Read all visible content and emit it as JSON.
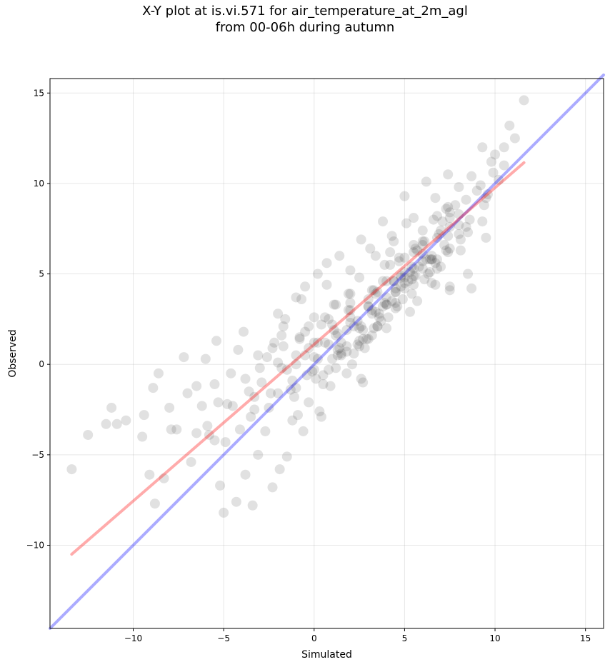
{
  "chart_data": {
    "type": "scatter",
    "title_lines": [
      "X-Y plot at is.vi.571 for air_temperature_at_2m_agl",
      "from 00-06h during autumn"
    ],
    "xlabel": "Simulated",
    "ylabel": "Observed",
    "xlim": [
      -14.6,
      16
    ],
    "ylim": [
      -14.6,
      15.8
    ],
    "x_ticks": [
      -10,
      -5,
      0,
      5,
      10,
      15
    ],
    "y_ticks": [
      -10,
      -5,
      0,
      5,
      10,
      15
    ],
    "x_tick_labels": [
      "−10",
      "−5",
      "0",
      "5",
      "10",
      "15"
    ],
    "y_tick_labels": [
      "−10",
      "−5",
      "0",
      "5",
      "10",
      "15"
    ],
    "grid": true,
    "point_color": "#333333",
    "lines": [
      {
        "kind": "one-to-one",
        "x": [
          -14.6,
          16
        ],
        "y": [
          -14.6,
          16
        ],
        "color": "#0000ff"
      },
      {
        "kind": "fit",
        "x": [
          -13.4,
          11.6
        ],
        "y": [
          -10.5,
          11.15
        ],
        "color": "#ff0000"
      }
    ],
    "points": {
      "x": [
        -13.4,
        -12.5,
        -11.5,
        -11.2,
        -10.9,
        -10.4,
        -9.5,
        -9.4,
        -9.1,
        -8.9,
        -8.8,
        -8.6,
        -8.3,
        -8.0,
        -7.9,
        -7.6,
        -7.2,
        -7.0,
        -6.8,
        -6.5,
        -6.2,
        -6.0,
        -5.8,
        -5.5,
        -5.4,
        -5.2,
        -5.0,
        -4.9,
        -4.3,
        -4.1,
        -3.8,
        -3.4,
        -3.3,
        -3.1,
        -2.7,
        -2.3,
        -2.0,
        -1.9,
        -1.5,
        -1.2,
        -0.9,
        -0.6,
        -0.3,
        0.0,
        0.3,
        0.6,
        0.9,
        1.2,
        1.5,
        1.8,
        2.1,
        2.4,
        2.7,
        3.0,
        3.3,
        3.6,
        3.9,
        4.2,
        4.5,
        4.8,
        5.1,
        5.4,
        5.7,
        6.0,
        6.3,
        6.6,
        6.9,
        7.2,
        7.5,
        7.8,
        8.1,
        8.4,
        8.7,
        9.0,
        9.3,
        9.6,
        9.9,
        10.2,
        10.5,
        10.8,
        11.1,
        11.6,
        -5.5,
        -4.8,
        -4.2,
        -3.6,
        -3.0,
        -2.5,
        -1.8,
        -1.2,
        -0.5,
        0.2,
        0.8,
        1.4,
        2.0,
        2.6,
        3.2,
        3.8,
        4.4,
        5.0,
        5.6,
        6.2,
        6.8,
        7.4,
        8.0,
        8.6,
        9.2,
        9.8,
        -6.5,
        -5.9,
        -5.3,
        -4.6,
        -3.9,
        -3.3,
        -2.6,
        -2.0,
        -1.3,
        -0.7,
        0.0,
        0.7,
        1.3,
        2.0,
        2.7,
        3.4,
        4.0,
        4.7,
        5.3,
        6.0,
        6.7,
        7.3,
        8.0,
        8.7,
        9.3,
        10.0,
        -2.2,
        -1.6,
        -1.0,
        -0.4,
        0.2,
        0.8,
        1.4,
        2.0,
        2.6,
        3.2,
        3.8,
        4.4,
        5.0,
        5.6,
        6.2,
        6.8,
        7.4,
        8.0,
        -3.5,
        -2.9,
        -2.3,
        -1.7,
        -1.1,
        -0.5,
        0.1,
        0.7,
        1.3,
        1.9,
        2.5,
        3.1,
        3.7,
        4.3,
        4.9,
        5.5,
        6.1,
        6.7,
        7.3,
        -1.0,
        -0.3,
        0.4,
        1.1,
        1.8,
        2.5,
        3.2,
        3.9,
        4.6,
        5.3,
        6.0,
        6.7,
        7.4,
        8.1,
        0.5,
        1.2,
        1.9,
        2.6,
        3.3,
        4.0,
        4.7,
        5.4,
        6.1,
        6.8,
        7.5,
        2.2,
        2.9,
        3.6,
        4.3,
        5.0,
        5.7,
        6.4,
        7.1,
        -0.8,
        -0.1,
        0.6,
        1.3,
        2.0,
        2.7,
        3.4,
        4.1,
        4.8,
        5.5,
        -4.5,
        -3.8,
        -3.1,
        -2.4,
        -1.7,
        -1.0,
        -0.3,
        0.4,
        1.1,
        1.8,
        -1.5,
        -0.5,
        0.5,
        1.5,
        2.5,
        3.5,
        4.5,
        5.5,
        6.5,
        7.5,
        8.5,
        9.5,
        0.0,
        1.0,
        2.0,
        3.0,
        4.0,
        5.0,
        6.0,
        7.0,
        8.0,
        1.5,
        2.5,
        3.5,
        4.5,
        5.5,
        6.5,
        7.5,
        3.0,
        4.0,
        5.0,
        6.0,
        7.0,
        -2.0,
        -1.0,
        0.0,
        1.0,
        2.0,
        3.0,
        4.0,
        5.0,
        6.0,
        4.5,
        5.5,
        6.5,
        7.5,
        8.5,
        9.5,
        10.5,
        3.5,
        4.5,
        5.5,
        6.5,
        7.5,
        -1.8,
        -0.8,
        0.2,
        1.2,
        2.2,
        3.2,
        4.2,
        5.2,
        0.8,
        1.8,
        2.8,
        3.8,
        4.8,
        5.8,
        6.8,
        2.4,
        3.4,
        4.4,
        5.4,
        6.4,
        7.4,
        8.4,
        9.4
      ],
      "y": [
        -5.8,
        -3.9,
        -3.3,
        -2.4,
        -3.3,
        -3.1,
        -4.0,
        -2.8,
        -6.1,
        -1.3,
        -7.7,
        -0.5,
        -6.3,
        -2.4,
        -3.6,
        -3.6,
        0.4,
        -1.6,
        -5.4,
        -3.8,
        -2.3,
        0.3,
        -3.9,
        -1.1,
        1.3,
        -6.7,
        -8.2,
        -4.3,
        -7.6,
        -3.6,
        -6.1,
        -7.8,
        -2.5,
        -5.0,
        -3.7,
        -6.8,
        0.1,
        -5.8,
        -5.1,
        -3.1,
        -2.8,
        -3.7,
        -2.1,
        -0.3,
        -2.6,
        1.2,
        -1.2,
        -0.2,
        0.5,
        1.9,
        0.0,
        2.4,
        -1.0,
        3.2,
        2.0,
        2.6,
        3.4,
        6.2,
        4.0,
        4.8,
        7.8,
        5.4,
        3.5,
        6.1,
        5.0,
        8.0,
        7.2,
        6.6,
        4.1,
        8.8,
        6.3,
        9.1,
        4.2,
        9.6,
        12.0,
        9.4,
        10.6,
        10.2,
        12.0,
        13.2,
        12.5,
        14.6,
        -4.2,
        -2.2,
        0.8,
        -1.5,
        -0.2,
        -2.4,
        1.6,
        -0.9,
        1.8,
        0.3,
        2.5,
        0.9,
        3.9,
        2.1,
        3.0,
        4.6,
        6.8,
        4.2,
        6.4,
        5.8,
        8.2,
        7.1,
        9.8,
        8.0,
        9.9,
        11.2,
        -1.2,
        -3.4,
        -2.1,
        -0.5,
        1.8,
        -1.8,
        0.4,
        2.8,
        -1.4,
        3.6,
        1.2,
        4.4,
        0.5,
        5.2,
        1.4,
        6.0,
        3.3,
        5.9,
        2.9,
        7.4,
        5.6,
        8.6,
        7.7,
        10.4,
        7.9,
        11.6,
        1.2,
        2.5,
        3.7,
        -0.6,
        5.0,
        1.1,
        6.0,
        2.6,
        6.9,
        2.8,
        7.9,
        4.6,
        9.3,
        4.9,
        10.1,
        5.8,
        10.5,
        7.2,
        -2.9,
        -1.0,
        0.9,
        2.1,
        -1.8,
        4.3,
        -0.8,
        5.6,
        1.7,
        3.9,
        1.3,
        6.4,
        2.4,
        7.1,
        3.6,
        8.1,
        4.7,
        9.2,
        6.3,
        0.0,
        2.1,
        -2.9,
        3.3,
        -0.5,
        4.8,
        1.6,
        5.5,
        3.2,
        5.1,
        6.8,
        4.4,
        8.7,
        6.9,
        -1.1,
        1.6,
        3.0,
        -0.8,
        4.1,
        2.0,
        5.7,
        3.9,
        6.8,
        5.3,
        7.6,
        0.6,
        1.4,
        2.8,
        3.5,
        4.5,
        6.3,
        5.1,
        7.9,
        1.5,
        -0.4,
        2.6,
        0.8,
        2.3,
        1.9,
        3.9,
        2.6,
        4.3,
        6.2,
        -2.3,
        -0.8,
        0.5,
        -1.6,
        1.0,
        -1.3,
        0.9,
        2.2,
        1.9,
        1.0,
        -0.3,
        0.5,
        -0.6,
        0.6,
        1.0,
        2.1,
        3.1,
        4.4,
        4.5,
        4.3,
        5.0,
        7.0,
        2.6,
        0.3,
        3.0,
        3.6,
        4.6,
        5.9,
        5.3,
        7.4,
        8.3,
        1.2,
        2.0,
        4.0,
        4.2,
        5.3,
        6.0,
        6.4,
        3.2,
        3.7,
        4.8,
        6.6,
        5.4,
        -1.6,
        0.5,
        0.4,
        2.2,
        3.4,
        1.4,
        3.3,
        5.1,
        5.7,
        4.0,
        6.6,
        5.8,
        8.1,
        7.3,
        9.2,
        11.0,
        2.1,
        3.4,
        4.9,
        5.8,
        8.4,
        -0.2,
        1.4,
        1.2,
        3.3,
        2.1,
        4.1,
        5.5,
        4.6,
        -0.3,
        0.7,
        0.9,
        3.2,
        4.9,
        5.4,
        7.0,
        1.1,
        2.9,
        4.6,
        4.7,
        5.8,
        6.2,
        7.6,
        8.8
      ]
    }
  }
}
